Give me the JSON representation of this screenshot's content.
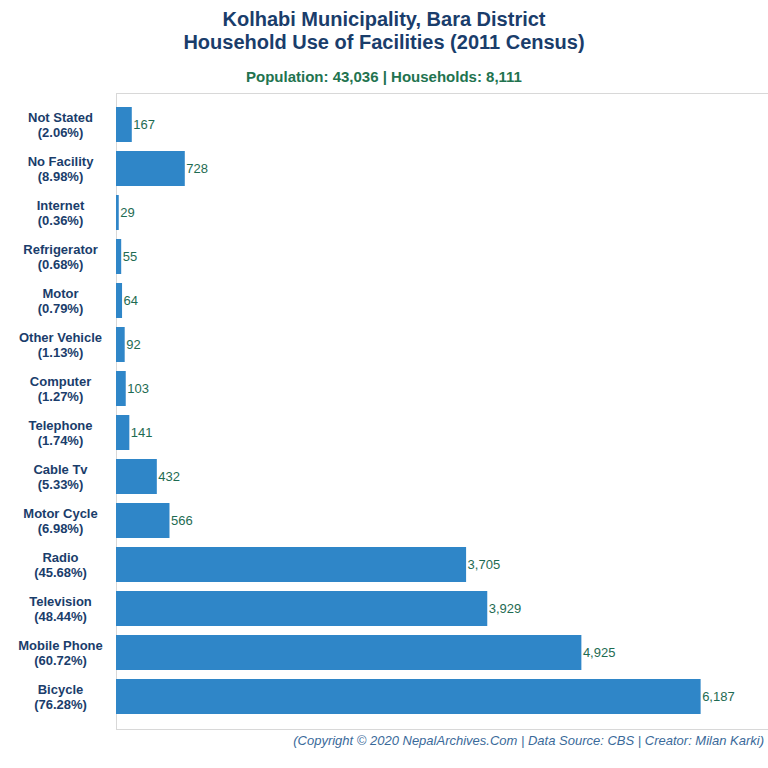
{
  "chart_data": {
    "type": "bar",
    "title": "Kolhabi Municipality, Bara District\nHousehold Use of Facilities (2011 Census)",
    "subtitle": "Population: 43,036 | Households: 8,111",
    "caption": "(Copyright © 2020 NepalArchives.Com | Data Source: CBS | Creator: Milan Karki)",
    "orientation": "horizontal",
    "categories": [
      "Not Stated\n(2.06%)",
      "No Facility\n(8.98%)",
      "Internet\n(0.36%)",
      "Refrigerator\n(0.68%)",
      "Motor\n(0.79%)",
      "Other Vehicle\n(1.13%)",
      "Computer\n(1.27%)",
      "Telephone\n(1.74%)",
      "Cable Tv\n(5.33%)",
      "Motor Cycle\n(6.98%)",
      "Radio\n(45.68%)",
      "Television\n(48.44%)",
      "Mobile Phone\n(60.72%)",
      "Bicycle\n(76.28%)"
    ],
    "values": [
      167,
      728,
      29,
      55,
      64,
      92,
      103,
      141,
      432,
      566,
      3705,
      3929,
      4925,
      6187
    ],
    "value_labels": [
      "167",
      "728",
      "29",
      "55",
      "64",
      "92",
      "103",
      "141",
      "432",
      "566",
      "3,705",
      "3,929",
      "4,925",
      "6,187"
    ],
    "data_labels": true,
    "color": "#2f86c8",
    "xlim": [
      0,
      6900
    ],
    "xticks": [],
    "tick_labels": "y",
    "grid": false
  }
}
